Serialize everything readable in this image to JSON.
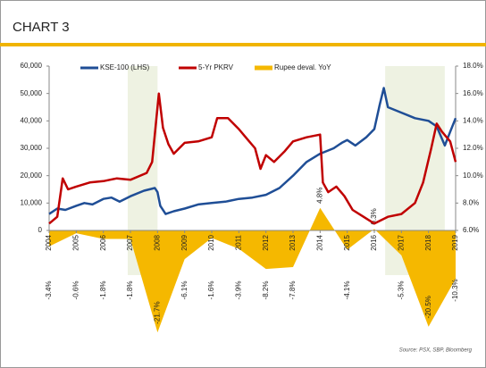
{
  "chart_data": {
    "type": "line",
    "title": "CHART 3",
    "source": "Source: PSX, SBP, Bloomberg",
    "xlim": [
      2004,
      2019
    ],
    "xticks": [
      2004,
      2005,
      2006,
      2007,
      2008,
      2009,
      2010,
      2011,
      2012,
      2013,
      2014,
      2015,
      2016,
      2017,
      2018,
      2019
    ],
    "ylim": [
      0,
      60000
    ],
    "yticks": [
      {
        "value": 0,
        "label": "0"
      },
      {
        "value": 10000,
        "label": "10,000"
      },
      {
        "value": 20000,
        "label": "20,000"
      },
      {
        "value": 30000,
        "label": "30,000"
      },
      {
        "value": 40000,
        "label": "40,000"
      },
      {
        "value": 50000,
        "label": "50,000"
      },
      {
        "value": 60000,
        "label": "60,000"
      }
    ],
    "y2lim": [
      6,
      18
    ],
    "y2ticks": [
      {
        "value": 6,
        "label": "6.0%"
      },
      {
        "value": 8,
        "label": "8.0%"
      },
      {
        "value": 10,
        "label": "10.0%"
      },
      {
        "value": 12,
        "label": "12.0%"
      },
      {
        "value": 14,
        "label": "14.0%"
      },
      {
        "value": 16,
        "label": "16.0%"
      },
      {
        "value": 18,
        "label": "18.0%"
      }
    ],
    "y3lim": [
      0,
      35
    ],
    "shaded_ranges": [
      [
        2006.9,
        2008.0
      ],
      [
        2016.4,
        2018.6
      ]
    ],
    "shade_color": "#eef2e2",
    "series": [
      {
        "name": "KSE-100 (LHS)",
        "color": "#1f4e96",
        "x": [
          2004.0,
          2004.3,
          2004.6,
          2005.0,
          2005.3,
          2005.6,
          2006.0,
          2006.3,
          2006.6,
          2007.0,
          2007.5,
          2007.9,
          2008.0,
          2008.1,
          2008.3,
          2008.6,
          2009.0,
          2009.5,
          2010.0,
          2010.5,
          2011.0,
          2011.5,
          2012.0,
          2012.5,
          2013.0,
          2013.5,
          2014.0,
          2014.5,
          2014.8,
          2015.0,
          2015.3,
          2015.7,
          2016.0,
          2016.2,
          2016.35,
          2016.5,
          2017.0,
          2017.5,
          2018.0,
          2018.3,
          2018.6,
          2018.8,
          2019.0
        ],
        "values": [
          6000,
          8000,
          7500,
          9000,
          10000,
          9500,
          11500,
          12000,
          10500,
          12500,
          14500,
          15500,
          14000,
          9000,
          6000,
          7000,
          8000,
          9500,
          10000,
          10500,
          11500,
          12000,
          13000,
          15500,
          20000,
          25000,
          28000,
          30000,
          32000,
          33000,
          31000,
          34000,
          37000,
          46000,
          52000,
          45000,
          43000,
          41000,
          40000,
          38000,
          31000,
          36000,
          41000
        ]
      },
      {
        "name": "5-Yr PKRV",
        "color": "#c00000",
        "axis": "y2",
        "x": [
          2004.0,
          2004.3,
          2004.5,
          2004.7,
          2005.0,
          2005.5,
          2006.0,
          2006.5,
          2007.0,
          2007.6,
          2007.8,
          2007.95,
          2008.05,
          2008.2,
          2008.4,
          2008.6,
          2009.0,
          2009.5,
          2010.0,
          2010.2,
          2010.6,
          2011.0,
          2011.3,
          2011.6,
          2011.8,
          2012.0,
          2012.3,
          2012.7,
          2013.0,
          2013.5,
          2014.0,
          2014.1,
          2014.3,
          2014.6,
          2014.9,
          2015.2,
          2015.6,
          2016.0,
          2016.5,
          2017.0,
          2017.5,
          2017.8,
          2018.1,
          2018.3,
          2018.5,
          2018.8,
          2019.0
        ],
        "values": [
          6.5,
          7.0,
          9.8,
          9.0,
          9.2,
          9.5,
          9.6,
          9.8,
          9.7,
          10.2,
          11.0,
          14.0,
          16.0,
          13.5,
          12.3,
          11.6,
          12.4,
          12.5,
          12.8,
          14.2,
          14.2,
          13.4,
          12.7,
          12.0,
          10.5,
          11.5,
          11.0,
          11.8,
          12.5,
          12.8,
          13.0,
          9.5,
          8.8,
          9.2,
          8.5,
          7.5,
          7.0,
          6.5,
          7.0,
          7.2,
          8.0,
          9.5,
          12.0,
          13.8,
          13.2,
          12.5,
          11.0
        ]
      },
      {
        "name": "Rupee deval. YoY",
        "color": "#f5b800",
        "axis": "y3",
        "kind": "area",
        "x": [
          2004,
          2005,
          2006,
          2007,
          2008,
          2009,
          2010,
          2011,
          2012,
          2013,
          2014,
          2015,
          2016,
          2017,
          2018,
          2019
        ],
        "values": [
          -3.4,
          -0.6,
          -1.8,
          -1.8,
          -21.7,
          -6.1,
          -1.6,
          -3.9,
          -8.2,
          -7.8,
          4.8,
          -4.1,
          0.3,
          -5.3,
          -20.5,
          -10.3
        ],
        "value_labels": [
          "-3.4%",
          "-0.6%",
          "-1.8%",
          "-1.8%",
          "-21.7%",
          "-6.1%",
          "-1.6%",
          "-3.9%",
          "-8.2%",
          "-7.8%",
          "4.8%",
          "-4.1%",
          "0.3%",
          "-5.3%",
          "-20.5%",
          "-10.3%"
        ]
      }
    ]
  }
}
